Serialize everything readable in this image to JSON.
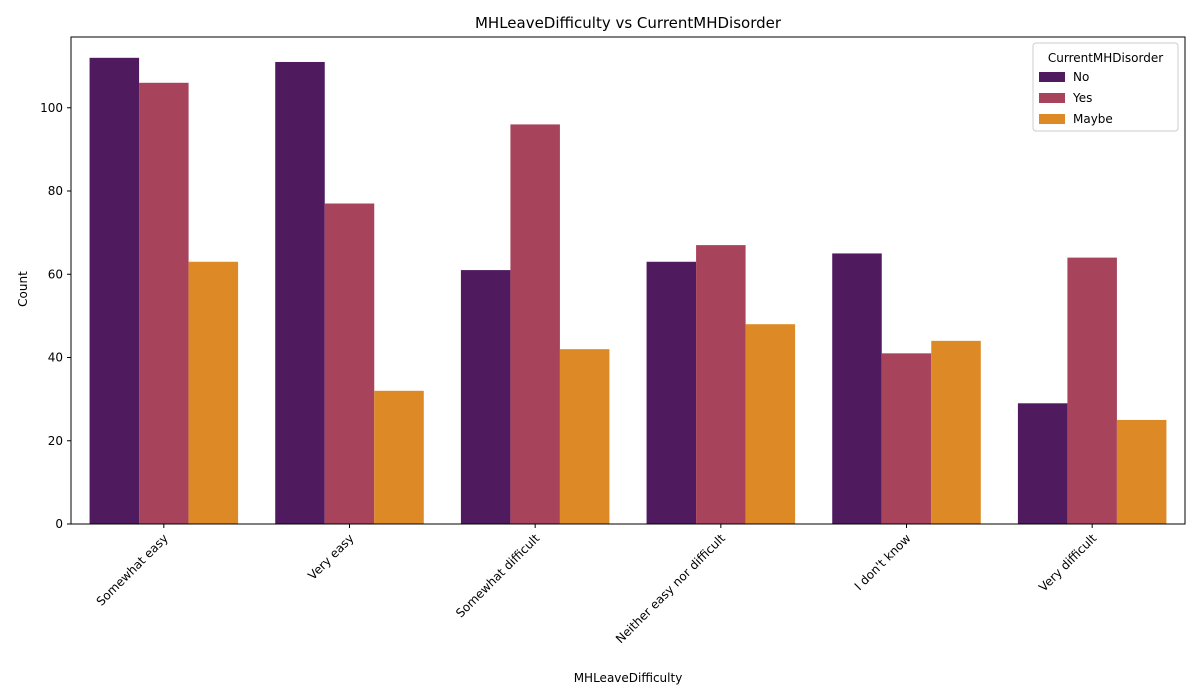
{
  "chart_data": {
    "type": "bar",
    "title": "MHLeaveDifficulty vs CurrentMHDisorder",
    "xlabel": "MHLeaveDifficulty",
    "ylabel": "Count",
    "ylim": [
      0,
      117
    ],
    "yticks": [
      0,
      20,
      40,
      60,
      80,
      100
    ],
    "grid": false,
    "categories": [
      "Somewhat easy",
      "Very easy",
      "Somewhat difficult",
      "Neither easy nor difficult",
      "I don't know",
      "Very difficult"
    ],
    "series": [
      {
        "name": "No",
        "color": "#4f1a5e",
        "values": [
          112,
          111,
          61,
          63,
          65,
          29
        ]
      },
      {
        "name": "Yes",
        "color": "#a8435c",
        "values": [
          106,
          77,
          96,
          67,
          41,
          64
        ]
      },
      {
        "name": "Maybe",
        "color": "#dd8a26",
        "values": [
          63,
          32,
          42,
          48,
          44,
          25
        ]
      }
    ],
    "legend": {
      "title": "CurrentMHDisorder",
      "placement": "top-right"
    }
  }
}
